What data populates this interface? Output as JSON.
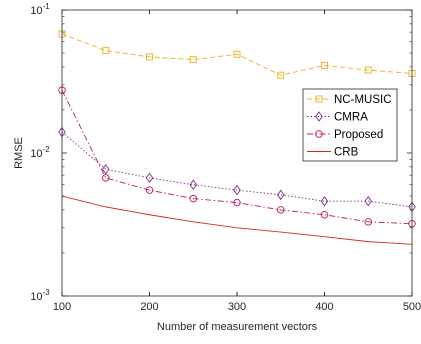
{
  "chart_data": {
    "type": "line",
    "title": "",
    "xlabel": "Number of measurement vectors",
    "ylabel": "RMSE",
    "xscale": "linear",
    "yscale": "log",
    "xlim": [
      100,
      500
    ],
    "ylim": [
      0.001,
      0.1
    ],
    "xticks": [
      100,
      200,
      300,
      400,
      500
    ],
    "xtick_labels": [
      "100",
      "200",
      "300",
      "400",
      "500"
    ],
    "yticks": [
      0.001,
      0.01,
      0.1
    ],
    "ytick_labels": [
      {
        "base": "10",
        "exp": "-3"
      },
      {
        "base": "10",
        "exp": "-2"
      },
      {
        "base": "10",
        "exp": "-1"
      }
    ],
    "grid": false,
    "legend_position": "right",
    "x": [
      100,
      150,
      200,
      250,
      300,
      350,
      400,
      450,
      500
    ],
    "series": [
      {
        "name": "NC-MUSIC",
        "color": "#EDB120",
        "dash": "dashed",
        "marker": "square",
        "values": [
          0.068,
          0.052,
          0.047,
          0.045,
          0.049,
          0.035,
          0.041,
          0.038,
          0.036
        ]
      },
      {
        "name": "CMRA",
        "color": "#7E2F8E",
        "dash": "dotted",
        "marker": "diamond",
        "values": [
          0.014,
          0.0077,
          0.0067,
          0.006,
          0.0055,
          0.0051,
          0.0046,
          0.0046,
          0.0042
        ]
      },
      {
        "name": "Proposed",
        "color": "#C2185B",
        "dash": "dashdot",
        "marker": "circle",
        "values": [
          0.0275,
          0.0067,
          0.0055,
          0.0048,
          0.0045,
          0.004,
          0.0037,
          0.0033,
          0.0032
        ]
      },
      {
        "name": "CRB",
        "color": "#D62728",
        "dash": "solid",
        "marker": "none",
        "values": [
          0.005,
          0.0042,
          0.0037,
          0.0033,
          0.003,
          0.0028,
          0.0026,
          0.0024,
          0.0023
        ]
      }
    ]
  }
}
